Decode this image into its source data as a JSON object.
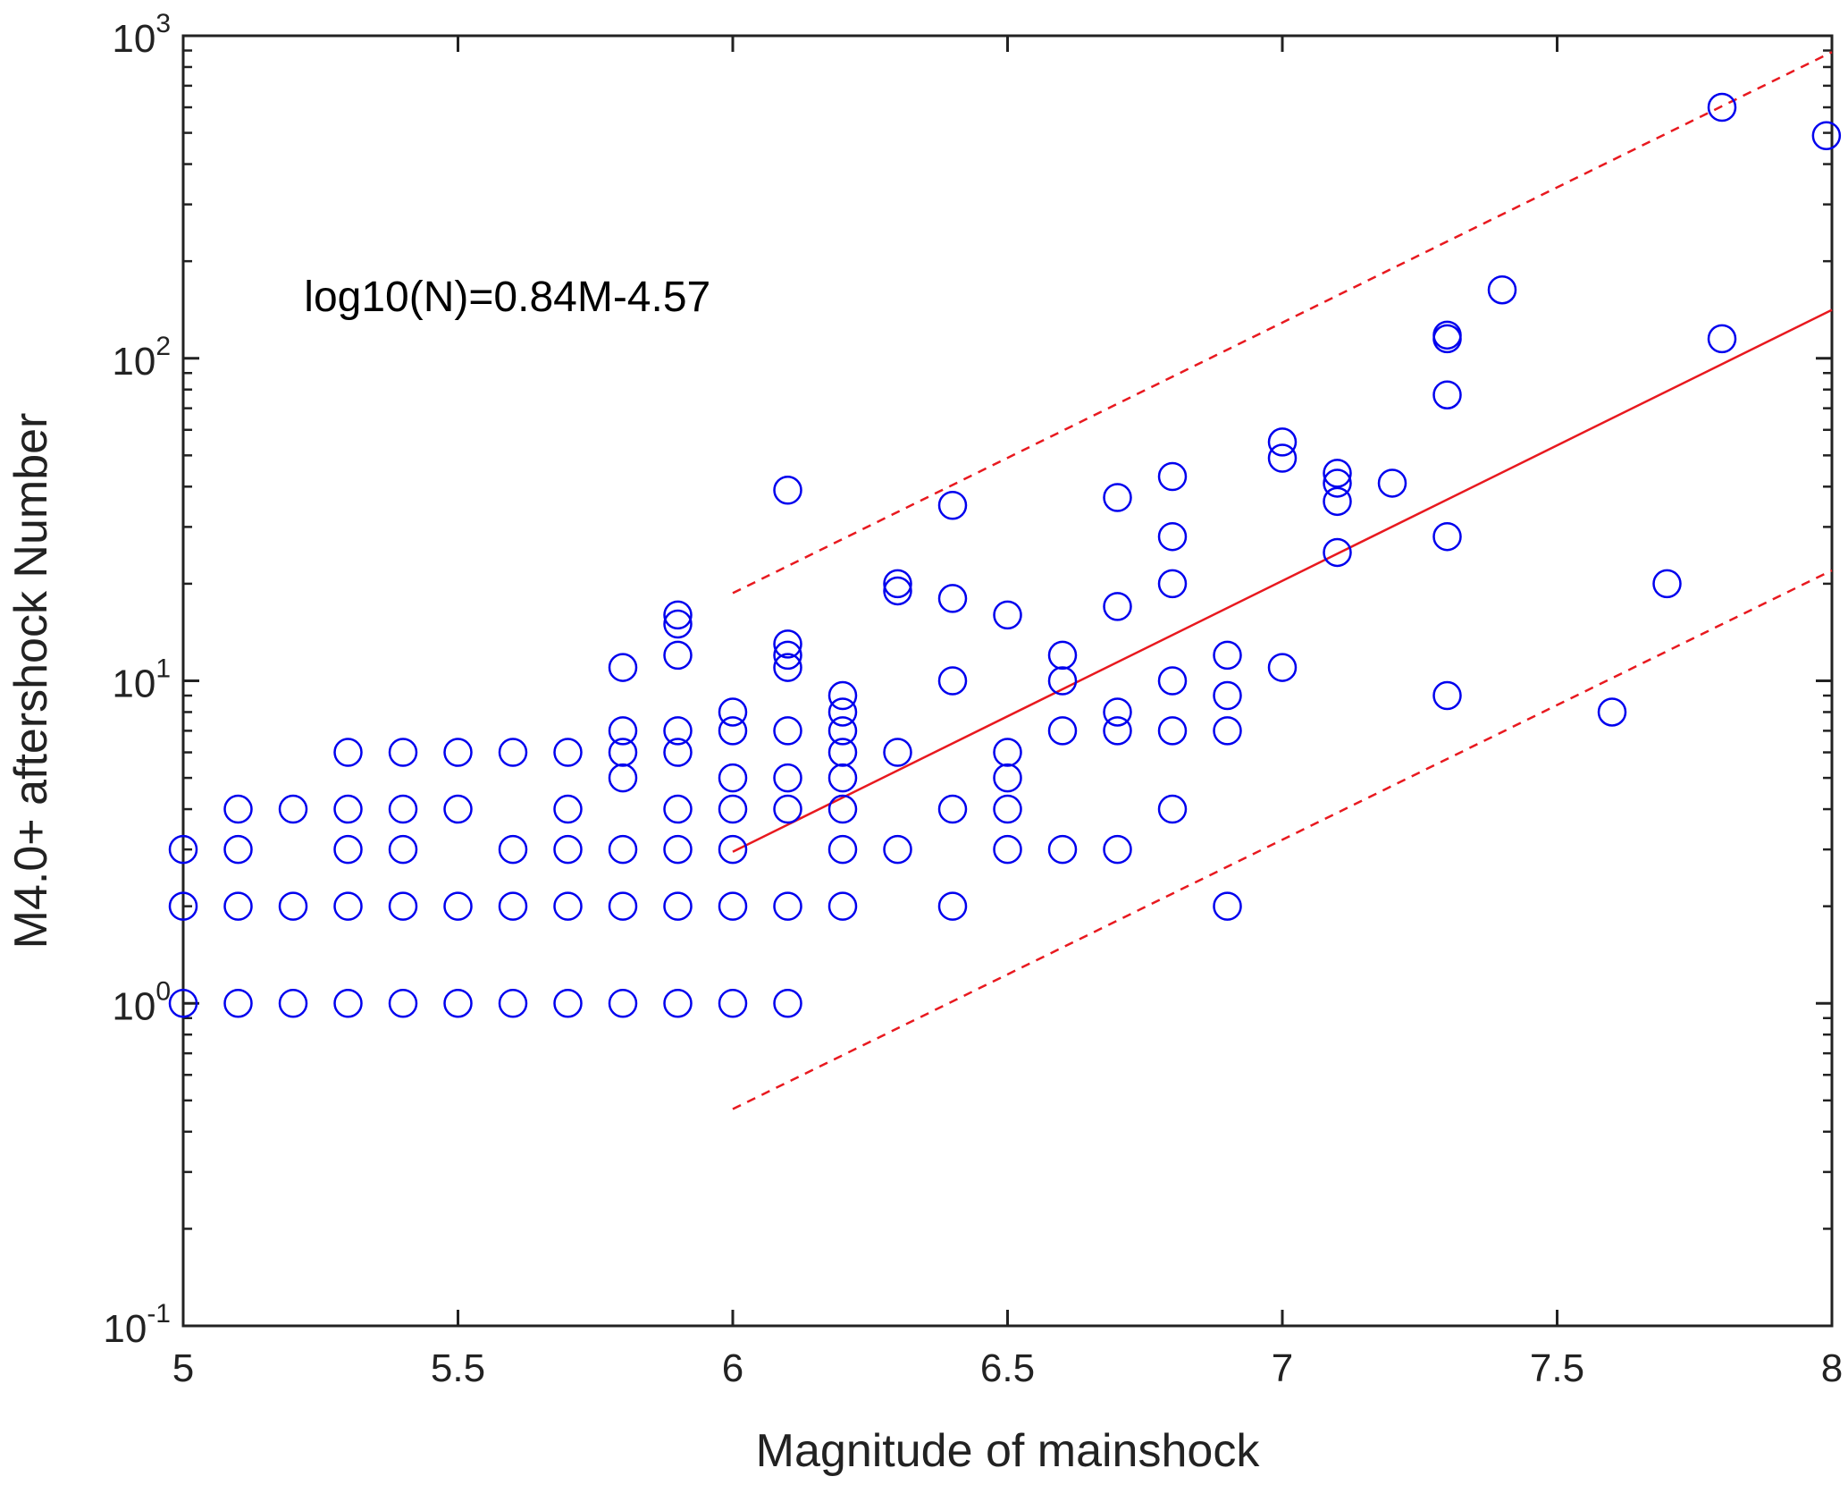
{
  "chart_data": {
    "type": "scatter",
    "title": "",
    "xlabel": "Magnitude of mainshock",
    "ylabel": "M4.0+ aftershock Number",
    "xlim": [
      5,
      8
    ],
    "ylim": [
      0.1,
      1000
    ],
    "yscale": "log",
    "grid": false,
    "x_ticks": [
      {
        "value": 5,
        "label": "5"
      },
      {
        "value": 5.5,
        "label": "5.5"
      },
      {
        "value": 6,
        "label": "6"
      },
      {
        "value": 6.5,
        "label": "6.5"
      },
      {
        "value": 7,
        "label": "7"
      },
      {
        "value": 7.5,
        "label": "7.5"
      },
      {
        "value": 8,
        "label": "8"
      }
    ],
    "y_ticks": [
      {
        "value": 0.1,
        "base": "10",
        "exp": "-1"
      },
      {
        "value": 1,
        "base": "10",
        "exp": "0"
      },
      {
        "value": 10,
        "base": "10",
        "exp": "1"
      },
      {
        "value": 100,
        "base": "10",
        "exp": "2"
      },
      {
        "value": 1000,
        "base": "10",
        "exp": "3"
      }
    ],
    "annotation": {
      "text": "log10(N)=0.84M-4.57",
      "x": 5.22,
      "y": 140
    },
    "colors": {
      "points": "#0000ee",
      "fit": "#e8191f",
      "axes": "#222222"
    },
    "fit_line": {
      "slope": 0.84,
      "intercept": -4.57,
      "x_range": [
        6,
        8
      ],
      "style": "solid"
    },
    "bound_lines": [
      {
        "x": [
          6,
          8
        ],
        "y": [
          18.7,
          890
        ],
        "style": "dashed"
      },
      {
        "x": [
          6,
          8
        ],
        "y": [
          0.47,
          22
        ],
        "style": "dashed"
      }
    ],
    "points": [
      [
        5,
        1
      ],
      [
        5,
        2
      ],
      [
        5,
        3
      ],
      [
        5.1,
        1
      ],
      [
        5.1,
        2
      ],
      [
        5.1,
        3
      ],
      [
        5.1,
        4
      ],
      [
        5.2,
        1
      ],
      [
        5.2,
        2
      ],
      [
        5.2,
        4
      ],
      [
        5.3,
        1
      ],
      [
        5.3,
        2
      ],
      [
        5.3,
        3
      ],
      [
        5.3,
        4
      ],
      [
        5.3,
        6
      ],
      [
        5.4,
        1
      ],
      [
        5.4,
        2
      ],
      [
        5.4,
        3
      ],
      [
        5.4,
        4
      ],
      [
        5.4,
        6
      ],
      [
        5.5,
        1
      ],
      [
        5.5,
        2
      ],
      [
        5.5,
        4
      ],
      [
        5.5,
        6
      ],
      [
        5.6,
        1
      ],
      [
        5.6,
        2
      ],
      [
        5.6,
        3
      ],
      [
        5.6,
        6
      ],
      [
        5.7,
        1
      ],
      [
        5.7,
        2
      ],
      [
        5.7,
        3
      ],
      [
        5.7,
        4
      ],
      [
        5.7,
        6
      ],
      [
        5.8,
        1
      ],
      [
        5.8,
        2
      ],
      [
        5.8,
        3
      ],
      [
        5.8,
        5
      ],
      [
        5.8,
        6
      ],
      [
        5.8,
        7
      ],
      [
        5.8,
        11
      ],
      [
        5.9,
        1
      ],
      [
        5.9,
        2
      ],
      [
        5.9,
        3
      ],
      [
        5.9,
        4
      ],
      [
        5.9,
        6
      ],
      [
        5.9,
        7
      ],
      [
        5.9,
        12
      ],
      [
        5.9,
        15
      ],
      [
        5.9,
        16
      ],
      [
        6,
        1
      ],
      [
        6,
        2
      ],
      [
        6,
        3
      ],
      [
        6,
        4
      ],
      [
        6,
        5
      ],
      [
        6,
        7
      ],
      [
        6,
        8
      ],
      [
        6.1,
        1
      ],
      [
        6.1,
        2
      ],
      [
        6.1,
        4
      ],
      [
        6.1,
        5
      ],
      [
        6.1,
        7
      ],
      [
        6.1,
        11
      ],
      [
        6.1,
        12
      ],
      [
        6.1,
        13
      ],
      [
        6.1,
        39
      ],
      [
        6.2,
        2
      ],
      [
        6.2,
        3
      ],
      [
        6.2,
        4
      ],
      [
        6.2,
        5
      ],
      [
        6.2,
        6
      ],
      [
        6.2,
        7
      ],
      [
        6.2,
        8
      ],
      [
        6.2,
        9
      ],
      [
        6.3,
        3
      ],
      [
        6.3,
        6
      ],
      [
        6.3,
        19
      ],
      [
        6.3,
        20
      ],
      [
        6.4,
        2
      ],
      [
        6.4,
        4
      ],
      [
        6.4,
        10
      ],
      [
        6.4,
        18
      ],
      [
        6.4,
        35
      ],
      [
        6.5,
        3
      ],
      [
        6.5,
        4
      ],
      [
        6.5,
        5
      ],
      [
        6.5,
        6
      ],
      [
        6.5,
        16
      ],
      [
        6.6,
        3
      ],
      [
        6.6,
        7
      ],
      [
        6.6,
        10
      ],
      [
        6.6,
        12
      ],
      [
        6.7,
        3
      ],
      [
        6.7,
        7
      ],
      [
        6.7,
        8
      ],
      [
        6.7,
        17
      ],
      [
        6.7,
        37
      ],
      [
        6.8,
        4
      ],
      [
        6.8,
        7
      ],
      [
        6.8,
        10
      ],
      [
        6.8,
        20
      ],
      [
        6.8,
        28
      ],
      [
        6.8,
        43
      ],
      [
        6.9,
        2
      ],
      [
        6.9,
        7
      ],
      [
        6.9,
        9
      ],
      [
        6.9,
        12
      ],
      [
        7,
        11
      ],
      [
        7,
        49
      ],
      [
        7,
        55
      ],
      [
        7.1,
        25
      ],
      [
        7.1,
        36
      ],
      [
        7.1,
        41
      ],
      [
        7.1,
        44
      ],
      [
        7.2,
        41
      ],
      [
        7.3,
        9
      ],
      [
        7.3,
        28
      ],
      [
        7.3,
        77
      ],
      [
        7.3,
        115
      ],
      [
        7.3,
        118
      ],
      [
        7.4,
        163
      ],
      [
        7.6,
        8
      ],
      [
        7.7,
        20
      ],
      [
        7.8,
        115
      ],
      [
        7.8,
        600
      ],
      [
        7.99,
        490
      ]
    ]
  }
}
